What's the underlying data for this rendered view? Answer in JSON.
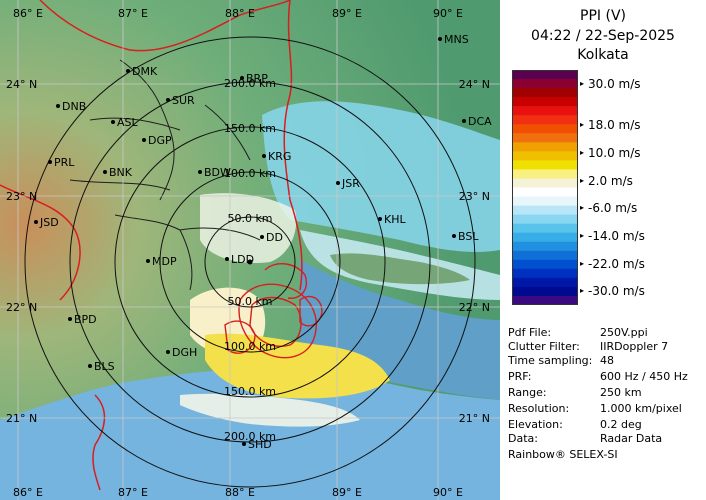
{
  "panel": {
    "title": "PPI (V)",
    "timestamp": "04:22 / 22-Sep-2025",
    "site": "Kolkata",
    "colorbar": {
      "colors": [
        "#5a0050",
        "#8a0030",
        "#a00000",
        "#c80000",
        "#e81010",
        "#f03010",
        "#f05000",
        "#f07010",
        "#f0a000",
        "#f0c000",
        "#f0e000",
        "#f8f080",
        "#f6f2d8",
        "#ffffff",
        "#e8f6fb",
        "#b8e6f6",
        "#88d6f0",
        "#58c4ec",
        "#38aee8",
        "#2090e0",
        "#1070d8",
        "#0050d0",
        "#0030c0",
        "#0018a8",
        "#000a90",
        "#3a0a80"
      ],
      "labels": [
        "30.0 m/s",
        "18.0 m/s",
        "10.0 m/s",
        "2.0 m/s",
        "-6.0 m/s",
        "-14.0 m/s",
        "-22.0 m/s",
        "-30.0 m/s"
      ],
      "label_values": [
        30,
        18,
        10,
        2,
        -6,
        -14,
        -22,
        -30
      ],
      "max": 34,
      "min": -34
    },
    "meta": [
      {
        "key": "Pdf File:",
        "value": "250V.ppi"
      },
      {
        "key": "Clutter Filter:",
        "value": "IIRDoppler 7"
      },
      {
        "key": "Time sampling:",
        "value": "48"
      },
      {
        "key": "PRF:",
        "value": "600 Hz / 450 Hz"
      },
      {
        "key": "Range:",
        "value": "250 km"
      },
      {
        "key": "Resolution:",
        "value": "1.000 km/pixel"
      },
      {
        "key": "Elevation:",
        "value": "0.2 deg"
      },
      {
        "key": "Data:",
        "value": "Radar Data"
      }
    ],
    "credit": "Rainbow® SELEX-SI"
  },
  "map": {
    "ring_labels": [
      "50.0 km",
      "100.0 km",
      "150.0 km",
      "200.0 km"
    ],
    "ring_km": [
      50,
      100,
      150,
      200
    ],
    "lon_labels": [
      "86° E",
      "87° E",
      "88° E",
      "89° E",
      "90° E"
    ],
    "lat_labels": [
      "24° N",
      "23° N",
      "22° N",
      "21° N"
    ],
    "stations": [
      {
        "name": "MNS"
      },
      {
        "name": "DMK"
      },
      {
        "name": "BRP"
      },
      {
        "name": "DNB"
      },
      {
        "name": "SUR"
      },
      {
        "name": "ASL"
      },
      {
        "name": "DGP"
      },
      {
        "name": "PRL"
      },
      {
        "name": "KRG"
      },
      {
        "name": "DCA"
      },
      {
        "name": "BNK"
      },
      {
        "name": "BDW"
      },
      {
        "name": "JSR"
      },
      {
        "name": "JSD"
      },
      {
        "name": "KHL"
      },
      {
        "name": "DD"
      },
      {
        "name": "BSL"
      },
      {
        "name": "MDP"
      },
      {
        "name": "LDD"
      },
      {
        "name": "BPD"
      },
      {
        "name": "DGH"
      },
      {
        "name": "BLS"
      },
      {
        "name": "SHD"
      }
    ]
  }
}
